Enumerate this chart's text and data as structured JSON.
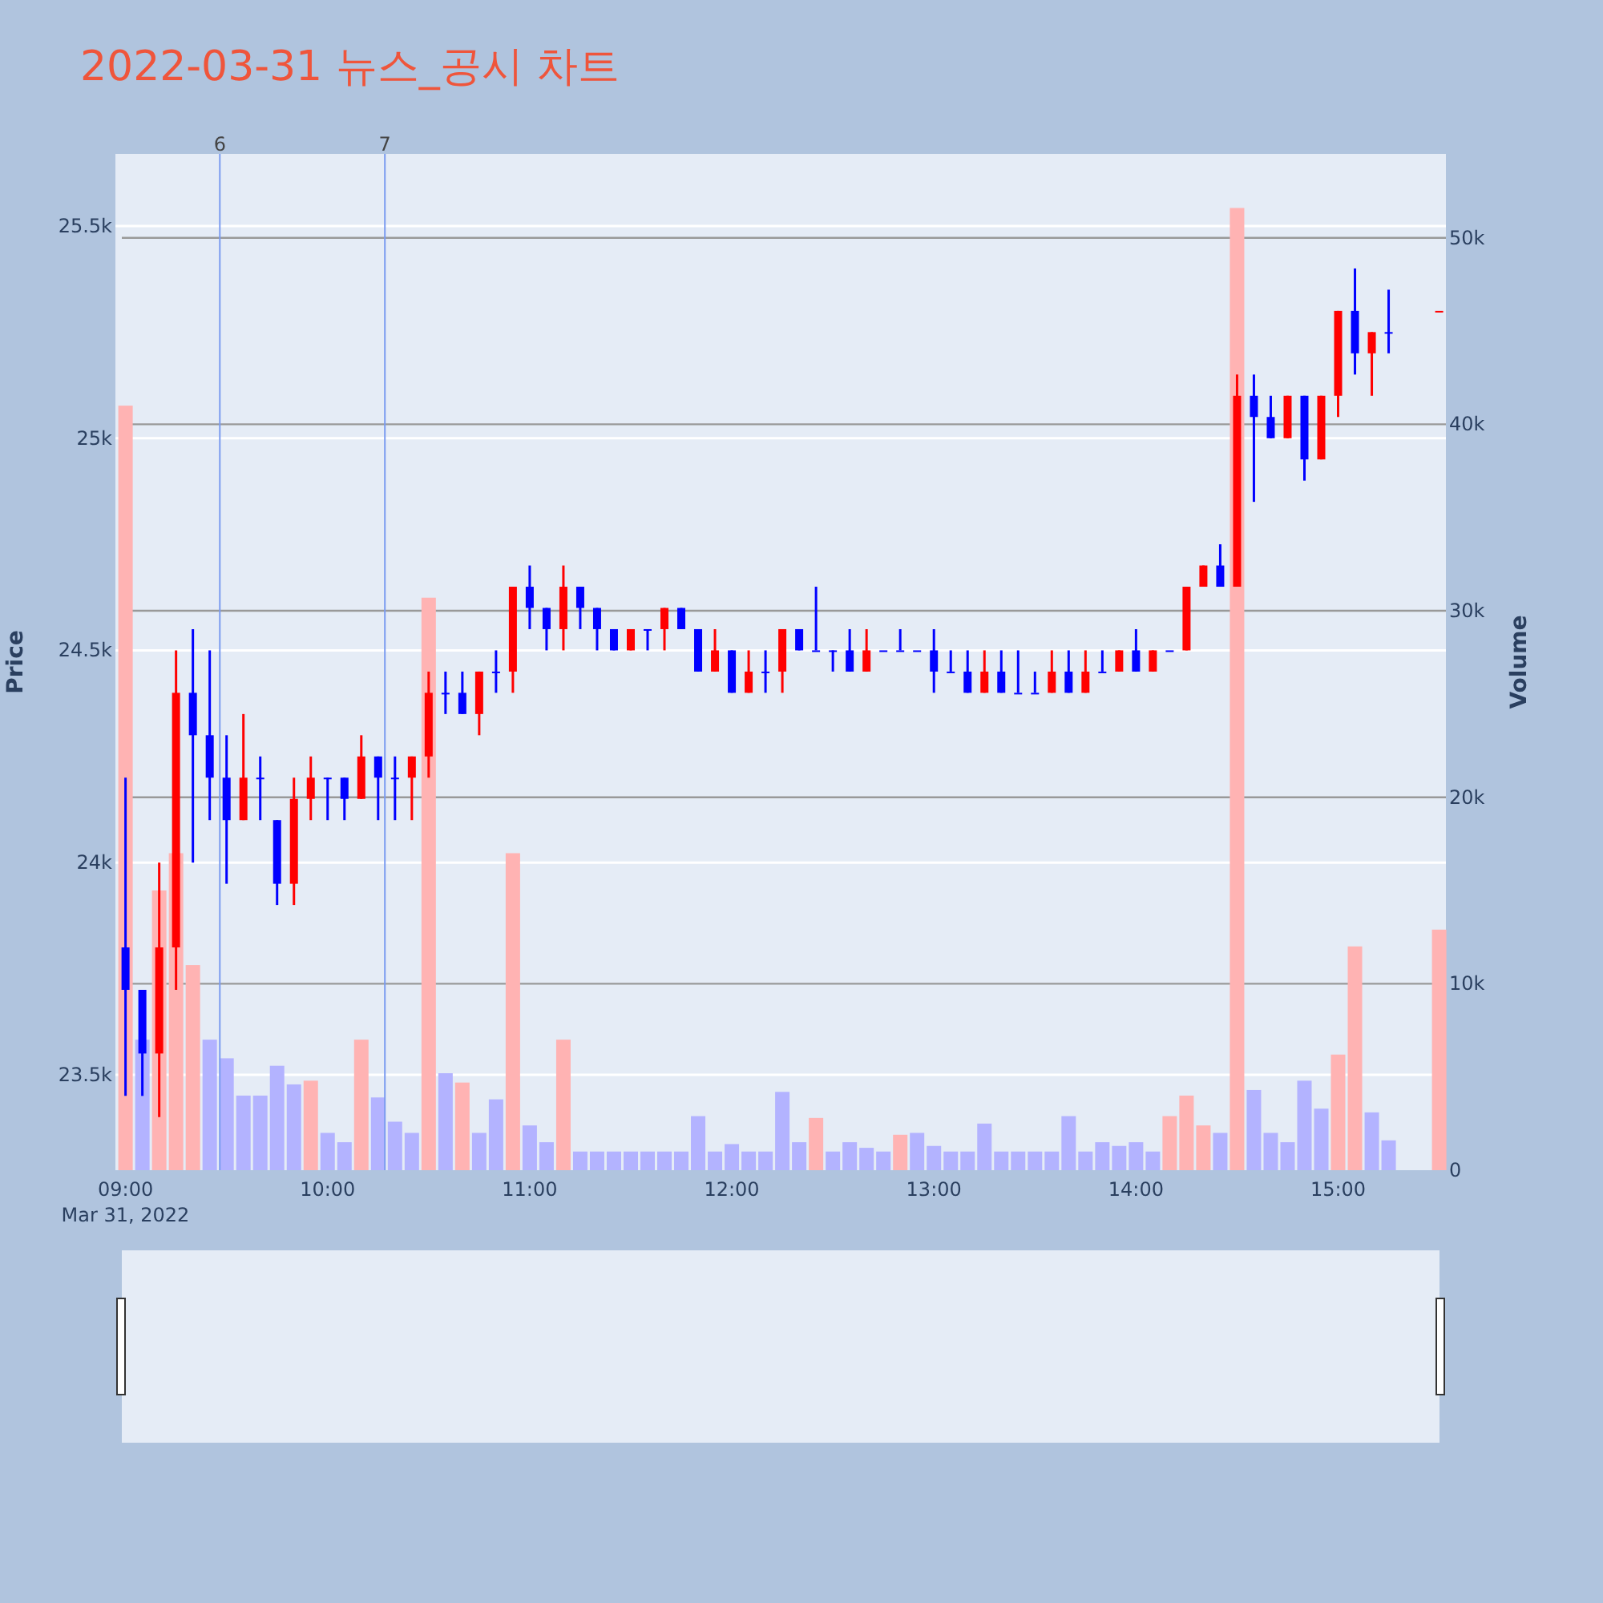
{
  "chart_data": {
    "type": "candlestick",
    "title": "2022-03-31 뉴스_공시 차트",
    "ylabel": "Price",
    "y2label": "Volume",
    "x": [
      "2022-03-31T09:00",
      "2022-03-31T09:05",
      "2022-03-31T09:10",
      "2022-03-31T09:15",
      "2022-03-31T09:20",
      "2022-03-31T09:25",
      "2022-03-31T09:30",
      "2022-03-31T09:35",
      "2022-03-31T09:40",
      "2022-03-31T09:45",
      "2022-03-31T09:50",
      "2022-03-31T09:55",
      "2022-03-31T10:00",
      "2022-03-31T10:05",
      "2022-03-31T10:10",
      "2022-03-31T10:15",
      "2022-03-31T10:20",
      "2022-03-31T10:25",
      "2022-03-31T10:30",
      "2022-03-31T10:35",
      "2022-03-31T10:40",
      "2022-03-31T10:45",
      "2022-03-31T10:50",
      "2022-03-31T10:55",
      "2022-03-31T11:00",
      "2022-03-31T11:05",
      "2022-03-31T11:10",
      "2022-03-31T11:15",
      "2022-03-31T11:20",
      "2022-03-31T11:25",
      "2022-03-31T11:30",
      "2022-03-31T11:35",
      "2022-03-31T11:40",
      "2022-03-31T11:45",
      "2022-03-31T11:50",
      "2022-03-31T11:55",
      "2022-03-31T12:00",
      "2022-03-31T12:05",
      "2022-03-31T12:10",
      "2022-03-31T12:15",
      "2022-03-31T12:20",
      "2022-03-31T12:25",
      "2022-03-31T12:30",
      "2022-03-31T12:35",
      "2022-03-31T12:40",
      "2022-03-31T12:45",
      "2022-03-31T12:50",
      "2022-03-31T12:55",
      "2022-03-31T13:00",
      "2022-03-31T13:05",
      "2022-03-31T13:10",
      "2022-03-31T13:15",
      "2022-03-31T13:20",
      "2022-03-31T13:25",
      "2022-03-31T13:30",
      "2022-03-31T13:35",
      "2022-03-31T13:40",
      "2022-03-31T13:45",
      "2022-03-31T13:50",
      "2022-03-31T13:55",
      "2022-03-31T14:00",
      "2022-03-31T14:05",
      "2022-03-31T14:10",
      "2022-03-31T14:15",
      "2022-03-31T14:20",
      "2022-03-31T14:25",
      "2022-03-31T14:30",
      "2022-03-31T14:35",
      "2022-03-31T14:40",
      "2022-03-31T14:45",
      "2022-03-31T14:50",
      "2022-03-31T14:55",
      "2022-03-31T15:00",
      "2022-03-31T15:05",
      "2022-03-31T15:10",
      "2022-03-31T15:15",
      "2022-03-31T15:30"
    ],
    "series": [
      {
        "ohlc": [
          [
            23800,
            24200,
            23450,
            23700
          ],
          [
            23700,
            23700,
            23450,
            23550
          ],
          [
            23550,
            24000,
            23400,
            23800
          ],
          [
            23800,
            24500,
            23700,
            24400
          ],
          [
            24400,
            24550,
            24000,
            24300
          ],
          [
            24300,
            24500,
            24100,
            24200
          ],
          [
            24200,
            24300,
            23950,
            24100
          ],
          [
            24100,
            24350,
            24100,
            24200
          ],
          [
            24200,
            24250,
            24100,
            24200
          ],
          [
            24100,
            24100,
            23900,
            23950
          ],
          [
            23950,
            24200,
            23900,
            24150
          ],
          [
            24150,
            24250,
            24100,
            24200
          ],
          [
            24200,
            24200,
            24100,
            24200
          ],
          [
            24200,
            24200,
            24100,
            24150
          ],
          [
            24150,
            24300,
            24150,
            24250
          ],
          [
            24250,
            24250,
            24100,
            24200
          ],
          [
            24200,
            24250,
            24100,
            24200
          ],
          [
            24200,
            24250,
            24100,
            24250
          ],
          [
            24250,
            24450,
            24200,
            24400
          ],
          [
            24400,
            24450,
            24350,
            24400
          ],
          [
            24400,
            24450,
            24350,
            24350
          ],
          [
            24350,
            24450,
            24300,
            24450
          ],
          [
            24450,
            24500,
            24400,
            24450
          ],
          [
            24450,
            24650,
            24400,
            24650
          ],
          [
            24650,
            24700,
            24550,
            24600
          ],
          [
            24600,
            24600,
            24500,
            24550
          ],
          [
            24550,
            24700,
            24500,
            24650
          ],
          [
            24650,
            24650,
            24550,
            24600
          ],
          [
            24600,
            24600,
            24500,
            24550
          ],
          [
            24550,
            24550,
            24500,
            24500
          ],
          [
            24500,
            24550,
            24500,
            24550
          ],
          [
            24550,
            24550,
            24500,
            24550
          ],
          [
            24550,
            24600,
            24500,
            24600
          ],
          [
            24600,
            24600,
            24550,
            24550
          ],
          [
            24550,
            24550,
            24450,
            24450
          ],
          [
            24450,
            24550,
            24450,
            24500
          ],
          [
            24500,
            24500,
            24400,
            24400
          ],
          [
            24400,
            24500,
            24400,
            24450
          ],
          [
            24450,
            24500,
            24400,
            24450
          ],
          [
            24450,
            24550,
            24400,
            24550
          ],
          [
            24550,
            24550,
            24500,
            24500
          ],
          [
            24500,
            24650,
            24500,
            24500
          ],
          [
            24500,
            24500,
            24450,
            24500
          ],
          [
            24500,
            24550,
            24450,
            24450
          ],
          [
            24450,
            24550,
            24450,
            24500
          ],
          [
            24500,
            24500,
            24500,
            24500
          ],
          [
            24500,
            24550,
            24500,
            24500
          ],
          [
            24500,
            24500,
            24500,
            24500
          ],
          [
            24500,
            24550,
            24400,
            24450
          ],
          [
            24450,
            24500,
            24450,
            24450
          ],
          [
            24450,
            24500,
            24400,
            24400
          ],
          [
            24400,
            24500,
            24400,
            24450
          ],
          [
            24450,
            24500,
            24400,
            24400
          ],
          [
            24400,
            24500,
            24400,
            24400
          ],
          [
            24400,
            24450,
            24400,
            24400
          ],
          [
            24400,
            24500,
            24400,
            24450
          ],
          [
            24450,
            24500,
            24400,
            24400
          ],
          [
            24400,
            24500,
            24400,
            24450
          ],
          [
            24450,
            24500,
            24450,
            24450
          ],
          [
            24450,
            24500,
            24450,
            24500
          ],
          [
            24500,
            24550,
            24450,
            24450
          ],
          [
            24450,
            24500,
            24450,
            24500
          ],
          [
            24500,
            24500,
            24500,
            24500
          ],
          [
            24500,
            24650,
            24500,
            24650
          ],
          [
            24650,
            24700,
            24650,
            24700
          ],
          [
            24700,
            24750,
            24650,
            24650
          ],
          [
            24650,
            25150,
            24650,
            25100
          ],
          [
            25100,
            25150,
            24850,
            25050
          ],
          [
            25050,
            25100,
            25000,
            25000
          ],
          [
            25000,
            25100,
            25000,
            25100
          ],
          [
            25100,
            25100,
            24900,
            24950
          ],
          [
            24950,
            25100,
            24950,
            25100
          ],
          [
            25100,
            25300,
            25050,
            25300
          ],
          [
            25300,
            25400,
            25150,
            25200
          ],
          [
            25200,
            25250,
            25100,
            25250
          ],
          [
            25250,
            25350,
            25200,
            25250
          ],
          [
            25300,
            25300,
            25300,
            25300
          ]
        ],
        "colors": [
          "#0000ff",
          "#0000ff",
          "#ff0000",
          "#ff0000",
          "#0000ff",
          "#0000ff",
          "#0000ff",
          "#ff0000",
          "#0000ff",
          "#0000ff",
          "#ff0000",
          "#ff0000",
          "#0000ff",
          "#0000ff",
          "#ff0000",
          "#0000ff",
          "#0000ff",
          "#ff0000",
          "#ff0000",
          "#0000ff",
          "#0000ff",
          "#ff0000",
          "#0000ff",
          "#ff0000",
          "#0000ff",
          "#0000ff",
          "#ff0000",
          "#0000ff",
          "#0000ff",
          "#0000ff",
          "#ff0000",
          "#0000ff",
          "#ff0000",
          "#0000ff",
          "#0000ff",
          "#ff0000",
          "#0000ff",
          "#ff0000",
          "#0000ff",
          "#ff0000",
          "#0000ff",
          "#0000ff",
          "#0000ff",
          "#0000ff",
          "#ff0000",
          "#0000ff",
          "#0000ff",
          "#0000ff",
          "#0000ff",
          "#0000ff",
          "#0000ff",
          "#ff0000",
          "#0000ff",
          "#0000ff",
          "#0000ff",
          "#ff0000",
          "#0000ff",
          "#ff0000",
          "#0000ff",
          "#ff0000",
          "#0000ff",
          "#ff0000",
          "#0000ff",
          "#ff0000",
          "#ff0000",
          "#0000ff",
          "#ff0000",
          "#0000ff",
          "#0000ff",
          "#ff0000",
          "#0000ff",
          "#ff0000",
          "#ff0000",
          "#0000ff",
          "#ff0000",
          "#0000ff",
          "#ff0000"
        ]
      },
      {
        "type": "bar",
        "axis": "y2",
        "values": [
          41000,
          7000,
          15000,
          17000,
          11000,
          7000,
          6000,
          4000,
          4000,
          5600,
          4600,
          4800,
          2000,
          1500,
          7000,
          3900,
          2600,
          2000,
          30700,
          5200,
          4700,
          2000,
          3800,
          17000,
          2400,
          1500,
          7000,
          1000,
          1000,
          1000,
          1000,
          1000,
          1000,
          1000,
          2900,
          1000,
          1400,
          1000,
          1000,
          4200,
          1500,
          2800,
          1000,
          1500,
          1200,
          1000,
          1900,
          2000,
          1300,
          1000,
          1000,
          2500,
          1000,
          1000,
          1000,
          1000,
          2900,
          1000,
          1500,
          1300,
          1500,
          1000,
          2900,
          4000,
          2400,
          2000,
          51600,
          4300,
          2000,
          1500,
          4800,
          3300,
          6200,
          12000,
          3100,
          1600,
          12900
        ],
        "colors": [
          "#ffb3b3",
          "#b3b3ff",
          "#ffb3b3",
          "#ffb3b3",
          "#ffb3b3",
          "#b3b3ff",
          "#b3b3ff",
          "#b3b3ff",
          "#b3b3ff",
          "#b3b3ff",
          "#b3b3ff",
          "#ffb3b3",
          "#b3b3ff",
          "#b3b3ff",
          "#ffb3b3",
          "#b3b3ff",
          "#b3b3ff",
          "#b3b3ff",
          "#ffb3b3",
          "#b3b3ff",
          "#ffb3b3",
          "#b3b3ff",
          "#b3b3ff",
          "#ffb3b3",
          "#b3b3ff",
          "#b3b3ff",
          "#ffb3b3",
          "#b3b3ff",
          "#b3b3ff",
          "#b3b3ff",
          "#b3b3ff",
          "#b3b3ff",
          "#b3b3ff",
          "#b3b3ff",
          "#b3b3ff",
          "#b3b3ff",
          "#b3b3ff",
          "#b3b3ff",
          "#b3b3ff",
          "#b3b3ff",
          "#b3b3ff",
          "#ffb3b3",
          "#b3b3ff",
          "#b3b3ff",
          "#b3b3ff",
          "#b3b3ff",
          "#ffb3b3",
          "#b3b3ff",
          "#b3b3ff",
          "#b3b3ff",
          "#b3b3ff",
          "#b3b3ff",
          "#b3b3ff",
          "#b3b3ff",
          "#b3b3ff",
          "#b3b3ff",
          "#b3b3ff",
          "#b3b3ff",
          "#b3b3ff",
          "#b3b3ff",
          "#b3b3ff",
          "#b3b3ff",
          "#ffb3b3",
          "#ffb3b3",
          "#ffb3b3",
          "#b3b3ff",
          "#ffb3b3",
          "#b3b3ff",
          "#b3b3ff",
          "#b3b3ff",
          "#b3b3ff",
          "#b3b3ff",
          "#ffb3b3",
          "#ffb3b3",
          "#b3b3ff",
          "#b3b3ff",
          "#ffb3b3"
        ]
      }
    ],
    "xlim": [
      "2022-03-31T08:57",
      "2022-03-31T15:32"
    ],
    "xticks": [
      {
        "value": "2022-03-31T09:00",
        "label": "09:00\nMar 31, 2022"
      },
      {
        "value": "2022-03-31T10:00",
        "label": "10:00"
      },
      {
        "value": "2022-03-31T11:00",
        "label": "11:00"
      },
      {
        "value": "2022-03-31T12:00",
        "label": "12:00"
      },
      {
        "value": "2022-03-31T13:00",
        "label": "13:00"
      },
      {
        "value": "2022-03-31T14:00",
        "label": "14:00"
      },
      {
        "value": "2022-03-31T15:00",
        "label": "15:00"
      }
    ],
    "ylim": [
      23275,
      25670
    ],
    "yticks": [
      {
        "value": 23500,
        "label": "23.5k"
      },
      {
        "value": 24000,
        "label": "24k"
      },
      {
        "value": 24500,
        "label": "24.5k"
      },
      {
        "value": 25000,
        "label": "25k"
      },
      {
        "value": 25500,
        "label": "25.5k"
      }
    ],
    "y2lim": [
      0,
      54500
    ],
    "y2ticks": [
      0,
      {
        "value": 10000,
        "label": "10k"
      },
      {
        "value": 20000,
        "label": "20k"
      },
      {
        "value": 30000,
        "label": "30k"
      },
      {
        "value": 40000,
        "label": "40k"
      },
      {
        "value": 50000,
        "label": "50k"
      }
    ],
    "ref_lines": [
      {
        "axis": "x",
        "value": "2022-03-31T09:28",
        "label": "6",
        "color": "#7b9cf0"
      },
      {
        "axis": "x",
        "value": "2022-03-31T10:17",
        "label": "7",
        "color": "#7b9cf0"
      }
    ],
    "grid": true
  }
}
